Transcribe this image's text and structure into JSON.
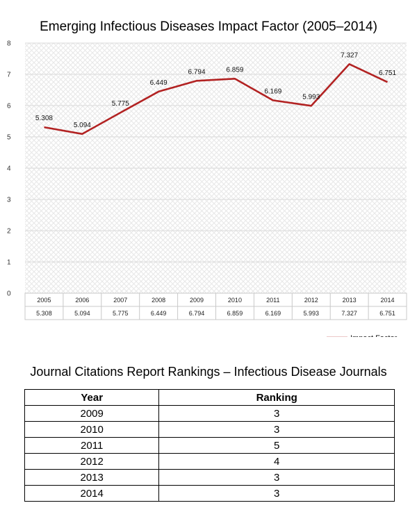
{
  "chart_data": {
    "type": "line",
    "title": "Emerging Infectious Diseases Impact Factor (2005–2014)",
    "categories": [
      "2005",
      "2006",
      "2007",
      "2008",
      "2009",
      "2010",
      "2011",
      "2012",
      "2013",
      "2014"
    ],
    "series": [
      {
        "name": "Impact Factor",
        "values": [
          5.308,
          5.094,
          5.775,
          6.449,
          6.794,
          6.859,
          6.169,
          5.993,
          7.327,
          6.751
        ],
        "labels": [
          "5.308",
          "5.094",
          "5.775",
          "6.449",
          "6.794",
          "6.859",
          "6.169",
          "5.993",
          "7.327",
          "6.751"
        ],
        "color": "#b22222"
      }
    ],
    "ylim": [
      0,
      8
    ],
    "yticks": [
      "0",
      "1",
      "2",
      "3",
      "4",
      "5",
      "6",
      "7",
      "8"
    ],
    "grid": true,
    "data_table": true,
    "legend": "bottom-right"
  },
  "table": {
    "title": "Journal Citations Report Rankings – Infectious Disease Journals",
    "headers": [
      "Year",
      "Ranking"
    ],
    "rows": [
      [
        "2009",
        "3"
      ],
      [
        "2010",
        "3"
      ],
      [
        "2011",
        "5"
      ],
      [
        "2012",
        "4"
      ],
      [
        "2013",
        "3"
      ],
      [
        "2014",
        "3"
      ]
    ]
  }
}
